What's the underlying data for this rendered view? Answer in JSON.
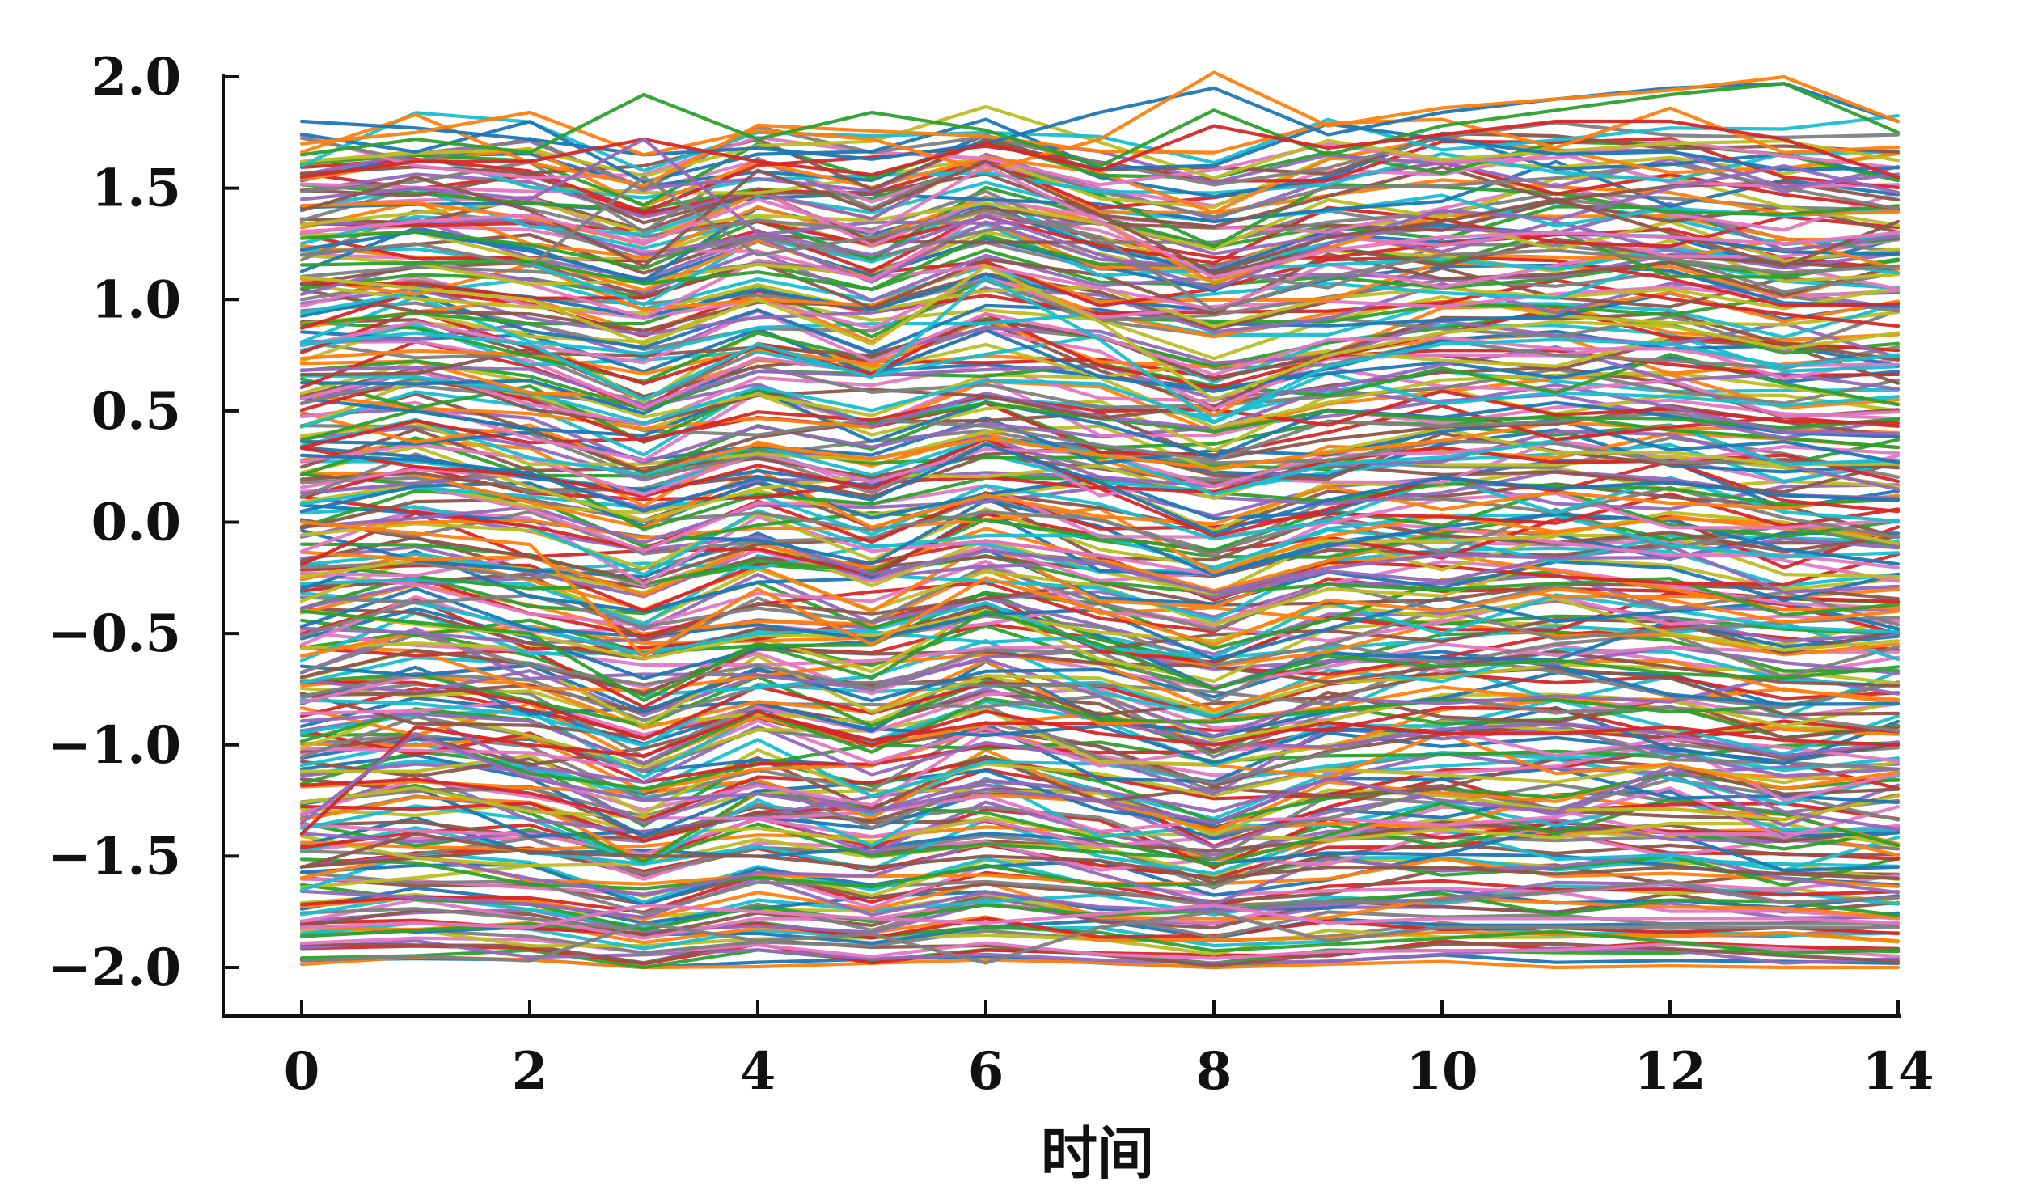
{
  "chart_data": {
    "type": "line",
    "xlabel": "时间",
    "ylabel": "",
    "title": "",
    "xlim": [
      0,
      14
    ],
    "ylim": [
      -2.0,
      2.0
    ],
    "x": [
      0,
      1,
      2,
      3,
      4,
      5,
      6,
      7,
      8,
      9,
      10,
      11,
      12,
      13,
      14
    ],
    "x_ticks": [
      0,
      2,
      4,
      6,
      8,
      10,
      12,
      14
    ],
    "x_tick_labels": [
      "0",
      "2",
      "4",
      "6",
      "8",
      "10",
      "12",
      "14"
    ],
    "y_ticks": [
      2.0,
      1.5,
      1.0,
      0.5,
      0.0,
      -0.5,
      -1.0,
      -1.5,
      -2.0
    ],
    "y_tick_labels": [
      "2.0",
      "1.5",
      "1.0",
      "0.5",
      "0.0",
      "−0.5",
      "−1.0",
      "−1.5",
      "−2.0"
    ],
    "grid": false,
    "legend": "none",
    "palette": [
      "#1f77b4",
      "#ff7f0e",
      "#2ca02c",
      "#d62728",
      "#9467bd",
      "#8c564b",
      "#e377c2",
      "#7f7f7f",
      "#bcbd22",
      "#17becf"
    ],
    "series_count": 300,
    "series": [
      {
        "values": [
          1.8,
          1.77,
          1.72,
          1.65,
          1.68,
          1.63,
          1.7,
          1.84,
          1.95,
          1.74,
          1.84,
          1.9,
          1.95,
          1.97,
          1.8
        ]
      },
      {
        "values": [
          1.7,
          1.75,
          1.84,
          1.65,
          1.76,
          1.72,
          1.58,
          1.72,
          2.02,
          1.78,
          1.86,
          1.9,
          1.94,
          2.0,
          1.8
        ]
      },
      {
        "values": [
          1.65,
          1.72,
          1.66,
          1.92,
          1.72,
          1.84,
          1.76,
          1.6,
          1.85,
          1.65,
          1.78,
          1.85,
          1.92,
          1.97,
          1.75
        ]
      },
      {
        "values": [
          1.55,
          1.62,
          1.62,
          1.72,
          1.62,
          1.56,
          1.7,
          1.58,
          1.78,
          1.68,
          1.74,
          1.8,
          1.8,
          1.72,
          1.55
        ]
      },
      {
        "values": [
          1.45,
          1.5,
          1.45,
          1.72,
          1.3,
          1.2,
          1.38,
          1.2,
          1.05,
          1.25,
          1.4,
          1.36,
          1.5,
          1.6,
          1.48
        ]
      },
      {
        "values": [
          1.4,
          1.55,
          1.4,
          1.15,
          1.58,
          1.4,
          1.62,
          1.38,
          1.12,
          1.28,
          1.35,
          1.45,
          1.3,
          1.15,
          1.35
        ]
      },
      {
        "values": [
          1.3,
          1.35,
          1.38,
          1.25,
          1.45,
          1.3,
          1.6,
          1.35,
          1.1,
          1.22,
          1.28,
          1.3,
          1.28,
          1.25,
          1.3
        ]
      },
      {
        "values": [
          1.2,
          1.25,
          1.15,
          1.55,
          1.2,
          1.28,
          1.4,
          1.28,
          0.95,
          1.1,
          1.2,
          1.22,
          1.18,
          1.12,
          1.15
        ]
      },
      {
        "values": [
          1.1,
          1.05,
          1.0,
          0.8,
          1.0,
          0.8,
          1.15,
          0.9,
          0.55,
          0.75,
          0.85,
          0.9,
          0.88,
          0.78,
          0.85
        ]
      },
      {
        "values": [
          0.8,
          0.85,
          0.8,
          0.55,
          0.8,
          0.65,
          1.1,
          0.82,
          0.45,
          0.7,
          0.8,
          0.82,
          0.8,
          0.7,
          0.75
        ]
      },
      {
        "values": [
          0.3,
          0.28,
          0.22,
          0.05,
          0.2,
          0.1,
          0.35,
          0.18,
          -0.05,
          0.1,
          0.2,
          0.15,
          0.18,
          0.12,
          0.1
        ]
      },
      {
        "values": [
          0.0,
          -0.05,
          -0.1,
          -0.6,
          -0.3,
          -0.55,
          -0.25,
          -0.4,
          -0.55,
          -0.35,
          -0.4,
          -0.3,
          -0.35,
          -0.45,
          -0.4
        ]
      },
      {
        "values": [
          -0.4,
          -0.45,
          -0.5,
          -0.8,
          -0.55,
          -0.7,
          -0.4,
          -0.55,
          -0.75,
          -0.6,
          -0.65,
          -0.62,
          -0.68,
          -0.7,
          -0.65
        ]
      },
      {
        "values": [
          -1.4,
          -0.92,
          -1.0,
          -1.05,
          -0.85,
          -1.0,
          -0.85,
          -0.95,
          -1.0,
          -0.9,
          -0.95,
          -0.95,
          -0.92,
          -0.98,
          -1.0
        ]
      },
      {
        "values": [
          -1.35,
          -0.95,
          -1.15,
          -1.25,
          -1.22,
          -1.3,
          -1.2,
          -1.25,
          -1.35,
          -1.15,
          -1.25,
          -1.3,
          -1.1,
          -1.3,
          -1.38
        ]
      },
      {
        "values": [
          -1.55,
          -1.4,
          -1.48,
          -1.5,
          -1.5,
          -1.55,
          -1.5,
          -1.52,
          -1.6,
          -1.55,
          -1.55,
          -1.58,
          -1.55,
          -1.58,
          -1.6
        ]
      },
      {
        "values": [
          -1.82,
          -1.8,
          -1.82,
          -1.72,
          -1.75,
          -1.78,
          -1.8,
          -1.76,
          -1.72,
          -1.8,
          -1.78,
          -1.78,
          -1.78,
          -1.78,
          -1.8
        ]
      },
      {
        "values": [
          -1.97,
          -1.95,
          -1.97,
          -1.8,
          -1.88,
          -1.85,
          -1.98,
          -1.82,
          -1.75,
          -1.88,
          -1.82,
          -1.82,
          -1.82,
          -1.82,
          -1.82
        ]
      }
    ]
  }
}
